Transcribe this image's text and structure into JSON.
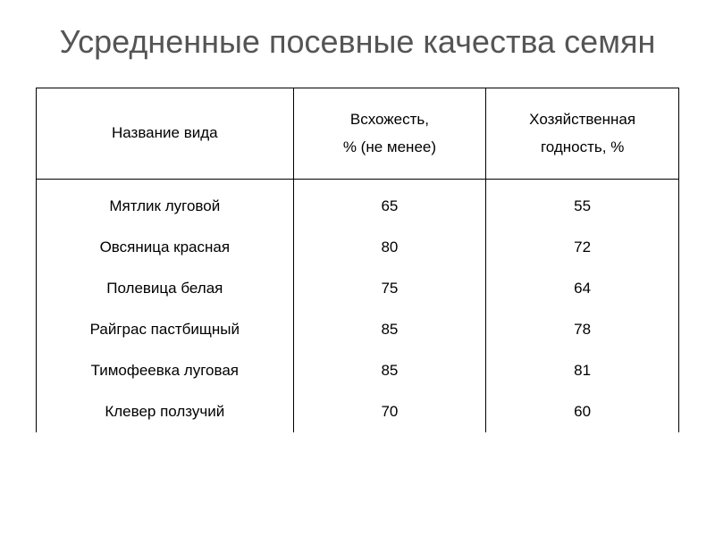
{
  "title": "Усредненные посевные качества семян",
  "table": {
    "type": "table",
    "background_color": "#ffffff",
    "border_color": "#000000",
    "text_color": "#000000",
    "title_color": "#555555",
    "title_fontsize": 36,
    "header_fontsize": 17,
    "body_fontsize": 17,
    "column_widths": [
      "40%",
      "30%",
      "30%"
    ],
    "columns": [
      {
        "label": "Название вида"
      },
      {
        "label_line1": "Всхожесть,",
        "label_line2": "% (не менее)"
      },
      {
        "label_line1": "Хозяйственная",
        "label_line2": "годность, %"
      }
    ],
    "rows": [
      {
        "name": "Мятлик луговой",
        "germination": "65",
        "suitability": "55"
      },
      {
        "name": "Овсяница красная",
        "germination": "80",
        "suitability": "72"
      },
      {
        "name": "Полевица белая",
        "germination": "75",
        "suitability": "64"
      },
      {
        "name": "Райграс пастбищный",
        "germination": "85",
        "suitability": "78"
      },
      {
        "name": "Тимофеевка луговая",
        "germination": "85",
        "suitability": "81"
      },
      {
        "name": "Клевер ползучий",
        "germination": "70",
        "suitability": "60"
      }
    ]
  }
}
